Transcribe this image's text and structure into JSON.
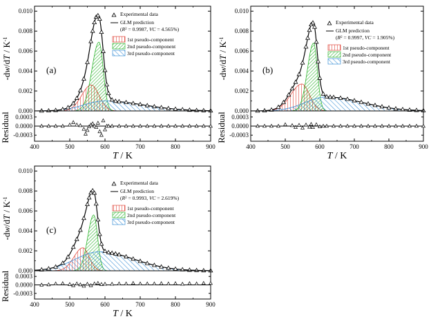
{
  "figure": {
    "xlabel_T": "T",
    "xlabel_rest": " / K",
    "ylabel_main": "-dw/dT / K",
    "ylabel_main_parts": [
      "-d",
      "w",
      "/d",
      "T",
      " / K",
      "-1"
    ],
    "ylabel_residual": "Residual",
    "legend_experimental": "Experimental data",
    "legend_glm": "GLM prediction",
    "legend_pc1": "1st pseudo-component",
    "legend_pc2": "2nd pseudo-component",
    "legend_pc3": "3rd pseudo-component",
    "colors": {
      "pc1": "#e0463c",
      "pc2": "#2fb52f",
      "pc3": "#3b8fd6",
      "line": "#000000"
    }
  },
  "chart_data": [
    {
      "type": "line",
      "panel_label": "(a)",
      "stats": "(R² = 0.9987, VC = 4.565%)",
      "stats_parts": [
        "(",
        "R",
        "2",
        " = 0.9987, ",
        "VC",
        " = 4.565%)"
      ],
      "xlim": [
        400,
        900
      ],
      "ylim": [
        0,
        0.0105
      ],
      "yticks": [
        "0.000",
        "0.002",
        "0.004",
        "0.006",
        "0.008",
        "0.010"
      ],
      "res_ylim": [
        -0.0005,
        0.0005
      ],
      "res_yticks": [
        "0.0003",
        "0.0000",
        "-0.0003"
      ],
      "xticks": [
        "400",
        "500",
        "600",
        "700",
        "800",
        "900"
      ],
      "components": [
        {
          "name": "1st pseudo-component",
          "peak_T": 561,
          "peak": 0.0026,
          "w_left": 27,
          "w_right": 22
        },
        {
          "name": "2nd pseudo-component",
          "peak_T": 583,
          "peak": 0.0069,
          "w_left": 20,
          "w_right": 12
        },
        {
          "name": "3rd pseudo-component",
          "peak_T": 598,
          "peak": 0.001,
          "w_left": 58,
          "w_right": 110
        }
      ],
      "experimental_T": [
        420,
        440,
        460,
        480,
        495,
        510,
        520,
        530,
        540,
        550,
        560,
        565,
        570,
        575,
        580,
        585,
        590,
        595,
        600,
        605,
        610,
        620,
        630,
        640,
        660,
        680,
        700,
        720,
        740,
        760,
        780,
        800,
        820,
        840,
        860,
        880,
        900
      ],
      "residual_T": [
        420,
        440,
        460,
        480,
        500,
        510,
        520,
        530,
        540,
        545,
        550,
        555,
        560,
        565,
        570,
        575,
        580,
        585,
        590,
        595,
        600,
        605,
        610,
        620,
        640,
        660,
        680,
        700,
        720,
        740,
        760,
        780,
        800,
        820,
        840,
        860,
        880,
        900
      ],
      "residual": [
        0,
        0,
        0,
        0,
        4e-05,
        0.00012,
        4e-05,
        2e-05,
        -0.0001,
        -0.00026,
        -0.00014,
        -2e-05,
        4e-05,
        8e-05,
        0,
        -4e-05,
        0.0001,
        -0.00018,
        -0.0003,
        0.00018,
        -0.00012,
        0,
        0,
        0,
        0,
        0,
        0,
        0,
        0,
        0,
        0,
        0,
        0,
        0,
        0,
        0,
        0,
        0
      ]
    },
    {
      "type": "line",
      "panel_label": "(b)",
      "stats": "(R² = 0.9997, VC = 1.905%)",
      "stats_parts": [
        "(",
        "R",
        "2",
        " = 0.9997, ",
        "VC",
        " = 1.905%)"
      ],
      "xlim": [
        400,
        900
      ],
      "ylim": [
        0,
        0.0105
      ],
      "yticks": [
        "0.000",
        "0.002",
        "0.004",
        "0.006",
        "0.008",
        "0.010"
      ],
      "res_ylim": [
        -0.0005,
        0.0005
      ],
      "res_yticks": [
        "0.0003",
        "0.0000",
        "-0.0003"
      ],
      "xticks": [
        "400",
        "500",
        "600",
        "700",
        "800",
        "900"
      ],
      "components": [
        {
          "name": "1st pseudo-component",
          "peak_T": 548,
          "peak": 0.0027,
          "w_left": 32,
          "w_right": 22
        },
        {
          "name": "2nd pseudo-component",
          "peak_T": 582,
          "peak": 0.0068,
          "w_left": 18,
          "w_right": 11
        },
        {
          "name": "3rd pseudo-component",
          "peak_T": 618,
          "peak": 0.0014,
          "w_left": 60,
          "w_right": 105
        }
      ],
      "experimental_T": [
        420,
        440,
        460,
        480,
        495,
        510,
        520,
        530,
        540,
        550,
        560,
        565,
        570,
        575,
        580,
        585,
        590,
        595,
        600,
        610,
        620,
        630,
        640,
        660,
        680,
        700,
        720,
        740,
        760,
        780,
        800,
        820,
        840,
        860,
        880,
        900
      ],
      "residual_T": [
        420,
        440,
        460,
        480,
        500,
        520,
        530,
        540,
        550,
        560,
        570,
        575,
        580,
        590,
        600,
        610,
        620,
        640,
        660,
        680,
        700,
        720,
        740,
        760,
        780,
        800,
        820,
        840,
        860,
        880,
        900
      ],
      "residual": [
        0,
        0,
        0,
        0,
        5e-05,
        2e-05,
        -4e-05,
        3e-05,
        -6e-05,
        4e-05,
        -3e-05,
        6e-05,
        -4e-05,
        5e-05,
        -2e-05,
        0,
        0,
        0,
        0,
        0,
        0,
        0,
        0,
        0,
        0,
        0,
        0,
        0,
        0,
        0,
        0
      ]
    },
    {
      "type": "line",
      "panel_label": "(c)",
      "stats": "(R² = 0.9993, VC = 2.619%)",
      "stats_parts": [
        "(",
        "R",
        "2",
        " = 0.9993, ",
        "VC",
        " = 2.619%)"
      ],
      "xlim": [
        400,
        900
      ],
      "ylim": [
        0,
        0.0105
      ],
      "yticks": [
        "0.000",
        "0.002",
        "0.004",
        "0.006",
        "0.008",
        "0.010"
      ],
      "res_ylim": [
        -0.0005,
        0.0005
      ],
      "res_yticks": [
        "0.0003",
        "0.0000",
        "-0.0003"
      ],
      "xticks": [
        "400",
        "500",
        "600",
        "700",
        "800",
        "900"
      ],
      "components": [
        {
          "name": "1st pseudo-component",
          "peak_T": 537,
          "peak": 0.0023,
          "w_left": 25,
          "w_right": 18
        },
        {
          "name": "2nd pseudo-component",
          "peak_T": 568,
          "peak": 0.0056,
          "w_left": 17,
          "w_right": 11
        },
        {
          "name": "3rd pseudo-component",
          "peak_T": 583,
          "peak": 0.0019,
          "w_left": 68,
          "w_right": 100
        }
      ],
      "experimental_T": [
        420,
        440,
        460,
        480,
        495,
        510,
        520,
        530,
        540,
        550,
        555,
        560,
        565,
        570,
        575,
        580,
        585,
        590,
        600,
        610,
        620,
        630,
        640,
        660,
        680,
        700,
        720,
        740,
        760,
        780,
        800,
        820,
        840,
        860,
        880,
        900
      ],
      "residual_T": [
        420,
        440,
        460,
        480,
        500,
        510,
        520,
        530,
        540,
        550,
        560,
        570,
        580,
        590,
        600,
        620,
        640,
        660,
        680,
        700,
        720,
        740,
        760,
        780,
        800,
        820,
        840,
        860,
        880,
        900
      ],
      "residual": [
        0,
        1e-05,
        4e-05,
        5e-05,
        2e-05,
        -2e-05,
        4e-05,
        1e-05,
        -4e-05,
        3e-05,
        -2e-05,
        4e-05,
        6e-05,
        2e-05,
        3e-05,
        3e-05,
        4e-05,
        4e-05,
        6e-05,
        4e-05,
        4e-05,
        4e-05,
        5e-05,
        4e-05,
        5e-05,
        3e-05,
        5e-05,
        4e-05,
        6e-05,
        6e-05
      ]
    }
  ]
}
